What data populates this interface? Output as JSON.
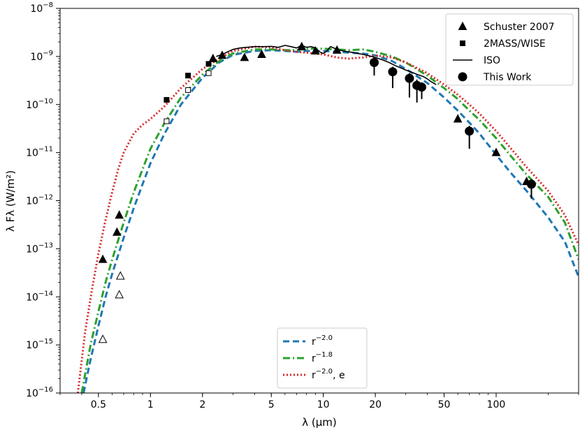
{
  "chart_data": {
    "type": "line",
    "xlabel": "λ (μm)",
    "ylabel": "λ Fλ (W/m²)",
    "x_scale": "log",
    "y_scale": "log",
    "xlim": [
      0.3,
      300
    ],
    "ylim": [
      1e-16,
      1e-08
    ],
    "x_ticks": [
      {
        "value": 0.5,
        "label": "0.5"
      },
      {
        "value": 1,
        "label": "1"
      },
      {
        "value": 2,
        "label": "2"
      },
      {
        "value": 5,
        "label": "5"
      },
      {
        "value": 10,
        "label": "10"
      },
      {
        "value": 20,
        "label": "20"
      },
      {
        "value": 50,
        "label": "50"
      },
      {
        "value": 100,
        "label": "100"
      }
    ],
    "y_ticks": [
      {
        "value": 1e-16,
        "base": "10",
        "exp": "−16"
      },
      {
        "value": 1e-15,
        "base": "10",
        "exp": "−15"
      },
      {
        "value": 1e-14,
        "base": "10",
        "exp": "−14"
      },
      {
        "value": 1e-13,
        "base": "10",
        "exp": "−13"
      },
      {
        "value": 1e-12,
        "base": "10",
        "exp": "−12"
      },
      {
        "value": 1e-11,
        "base": "10",
        "exp": "−11"
      },
      {
        "value": 1e-10,
        "base": "10",
        "exp": "−10"
      },
      {
        "value": 1e-09,
        "base": "10",
        "exp": "−9"
      },
      {
        "value": 1e-08,
        "base": "10",
        "exp": "−8"
      }
    ],
    "grid": false,
    "legends": [
      {
        "placement": "top-right",
        "entries": [
          {
            "key": "schuster",
            "label": "Schuster 2007",
            "marker": "triangle"
          },
          {
            "key": "twomass",
            "label": "2MASS/WISE",
            "marker": "square"
          },
          {
            "key": "iso",
            "label": "ISO",
            "marker": "line"
          },
          {
            "key": "thiswork",
            "label": "This Work",
            "marker": "circle"
          }
        ]
      },
      {
        "placement": "lower-center",
        "entries": [
          {
            "key": "r20",
            "label": "r",
            "sup": "−2.0",
            "suffix": ""
          },
          {
            "key": "r18",
            "label": "r",
            "sup": "−1.8",
            "suffix": ""
          },
          {
            "key": "r20e",
            "label": "r",
            "sup": "−2.0",
            "suffix": ", e"
          }
        ]
      }
    ],
    "model_series": [
      {
        "key": "r20",
        "color": "#1f77b4",
        "dash": "dashed",
        "x": [
          0.41,
          0.45,
          0.5,
          0.55,
          0.6,
          0.7,
          0.8,
          0.9,
          1.0,
          1.2,
          1.5,
          2.0,
          2.5,
          3,
          4,
          5,
          6,
          7,
          8,
          10,
          12,
          14,
          17,
          20,
          25,
          30,
          40,
          50,
          60,
          70,
          80,
          100,
          120,
          150,
          200,
          250,
          300
        ],
        "y": [
          1e-16,
          5e-16,
          2.5e-15,
          1e-14,
          3e-14,
          1.7e-13,
          7e-13,
          2.2e-12,
          6e-12,
          2.4e-11,
          1e-10,
          3.6e-10,
          7.5e-10,
          1.08e-09,
          1.3e-09,
          1.35e-09,
          1.3e-09,
          1.25e-09,
          1.3e-09,
          1.3e-09,
          1.25e-09,
          1.2e-09,
          1.15e-09,
          1.05e-09,
          8e-10,
          5.5e-10,
          2.8e-10,
          1.4e-10,
          7.5e-11,
          4.2e-11,
          2.5e-11,
          9e-12,
          4e-12,
          1.6e-12,
          4.5e-13,
          1.4e-13,
          2.6e-14
        ]
      },
      {
        "key": "r18",
        "color": "#2ca02c",
        "dash": "dashdot",
        "x": [
          0.4,
          0.45,
          0.5,
          0.55,
          0.6,
          0.7,
          0.8,
          0.9,
          1.0,
          1.2,
          1.5,
          2.0,
          2.5,
          3,
          4,
          5,
          6,
          7,
          8,
          10,
          12,
          14,
          17,
          20,
          25,
          30,
          40,
          50,
          60,
          70,
          80,
          100,
          120,
          150,
          200,
          250,
          300
        ],
        "y": [
          1e-16,
          1e-15,
          5e-15,
          2e-14,
          6e-14,
          3.5e-13,
          1.5e-12,
          4.5e-12,
          1.2e-11,
          4e-11,
          1.4e-10,
          4.2e-10,
          8e-10,
          1.15e-09,
          1.4e-09,
          1.4e-09,
          1.35e-09,
          1.35e-09,
          1.45e-09,
          1.45e-09,
          1.4e-09,
          1.35e-09,
          1.4e-09,
          1.25e-09,
          1e-09,
          7.5e-10,
          4e-10,
          2.2e-10,
          1.3e-10,
          7.5e-11,
          4.8e-11,
          2e-11,
          9e-12,
          3.5e-12,
          1.2e-12,
          3.5e-13,
          6e-14
        ]
      },
      {
        "key": "r20e",
        "color": "#d62728",
        "dash": "dotted",
        "x": [
          0.38,
          0.42,
          0.46,
          0.5,
          0.55,
          0.6,
          0.65,
          0.7,
          0.8,
          0.9,
          1.0,
          1.2,
          1.5,
          2.0,
          2.5,
          3,
          4,
          5,
          6,
          7,
          8,
          10,
          12,
          14,
          17,
          20,
          25,
          30,
          40,
          50,
          60,
          70,
          80,
          100,
          120,
          150,
          200,
          250,
          300
        ],
        "y": [
          1e-16,
          2e-15,
          1.5e-14,
          8e-14,
          4e-13,
          1.5e-12,
          4.5e-12,
          1e-11,
          2.5e-11,
          3.8e-11,
          5e-11,
          9e-11,
          2.2e-10,
          5.5e-10,
          9e-10,
          1.3e-09,
          1.6e-09,
          1.55e-09,
          1.35e-09,
          1.25e-09,
          1.2e-09,
          1.1e-09,
          9.5e-10,
          9e-10,
          9.5e-10,
          1.05e-09,
          9.5e-10,
          7.5e-10,
          4.5e-10,
          2.6e-10,
          1.6e-10,
          1e-10,
          6.5e-11,
          2.8e-11,
          1.3e-11,
          5e-12,
          1.6e-12,
          5e-13,
          1.2e-13
        ]
      }
    ],
    "iso": {
      "key": "iso",
      "color": "#000000",
      "x": [
        2.4,
        2.6,
        2.8,
        3.0,
        3.3,
        3.6,
        4.0,
        4.5,
        5.0,
        5.5,
        6.0,
        6.5,
        7.0,
        7.5,
        8.0,
        8.5,
        9.0,
        9.5,
        10.0,
        10.5,
        11.0,
        11.5,
        12.0,
        12.5,
        13.0,
        14.0,
        15.0,
        16.0,
        17.0,
        18.0,
        19.0,
        20.0,
        22.0,
        24.0,
        26.0,
        28.0,
        30.0,
        32.0,
        35.0,
        38.0,
        40.0,
        42.0,
        45.0
      ],
      "y": [
        1e-09,
        1.1e-09,
        1.25e-09,
        1.4e-09,
        1.5e-09,
        1.55e-09,
        1.6e-09,
        1.6e-09,
        1.62e-09,
        1.55e-09,
        1.7e-09,
        1.6e-09,
        1.5e-09,
        1.7e-09,
        1.55e-09,
        1.6e-09,
        1.5e-09,
        1.25e-09,
        1.15e-09,
        1.3e-09,
        1.6e-09,
        1.5e-09,
        1.4e-09,
        1.35e-09,
        1.3e-09,
        1.25e-09,
        1.2e-09,
        1.15e-09,
        1.1e-09,
        1.05e-09,
        1e-09,
        9.5e-10,
        8.5e-10,
        7.5e-10,
        6.5e-10,
        5.8e-10,
        5.2e-10,
        4.8e-10,
        4.2e-10,
        3.8e-10,
        3.4e-10,
        3e-10,
        2.6e-10
      ]
    },
    "schuster_filled": {
      "x": [
        0.53,
        0.64,
        0.66,
        2.3,
        2.6,
        3.5,
        4.4,
        7.5,
        9.0,
        12.0,
        60.0,
        100.0,
        150.0
      ],
      "y": [
        6e-14,
        2.2e-13,
        5e-13,
        9e-10,
        1.05e-09,
        9.5e-10,
        1.1e-09,
        1.6e-09,
        1.3e-09,
        1.35e-09,
        5e-11,
        1e-11,
        2.5e-12
      ]
    },
    "schuster_open": {
      "x": [
        0.53,
        0.66,
        0.67
      ],
      "y": [
        1.3e-15,
        1.1e-14,
        2.7e-14
      ]
    },
    "twomass_filled": {
      "x": [
        1.24,
        1.65,
        2.17
      ],
      "y": [
        1.25e-10,
        4e-10,
        7e-10
      ]
    },
    "twomass_open": {
      "x": [
        1.24,
        1.65,
        2.17
      ],
      "y": [
        4.5e-11,
        2e-10,
        4.5e-10
      ]
    },
    "thiswork": {
      "x": [
        19.7,
        25.2,
        31.5,
        34.8,
        37.1,
        70.0,
        160.0
      ],
      "y": [
        7.5e-10,
        4.8e-10,
        3.5e-10,
        2.5e-10,
        2.3e-10,
        2.8e-11,
        2.2e-12
      ],
      "err_up": [
        2e-10,
        1.3e-10,
        1e-10,
        8e-11,
        6e-11,
        8e-12,
        6e-13
      ],
      "err_down": [
        3.5e-10,
        2.6e-10,
        2.1e-10,
        1.4e-10,
        1e-10,
        1.6e-11,
        1.1e-12
      ]
    }
  }
}
